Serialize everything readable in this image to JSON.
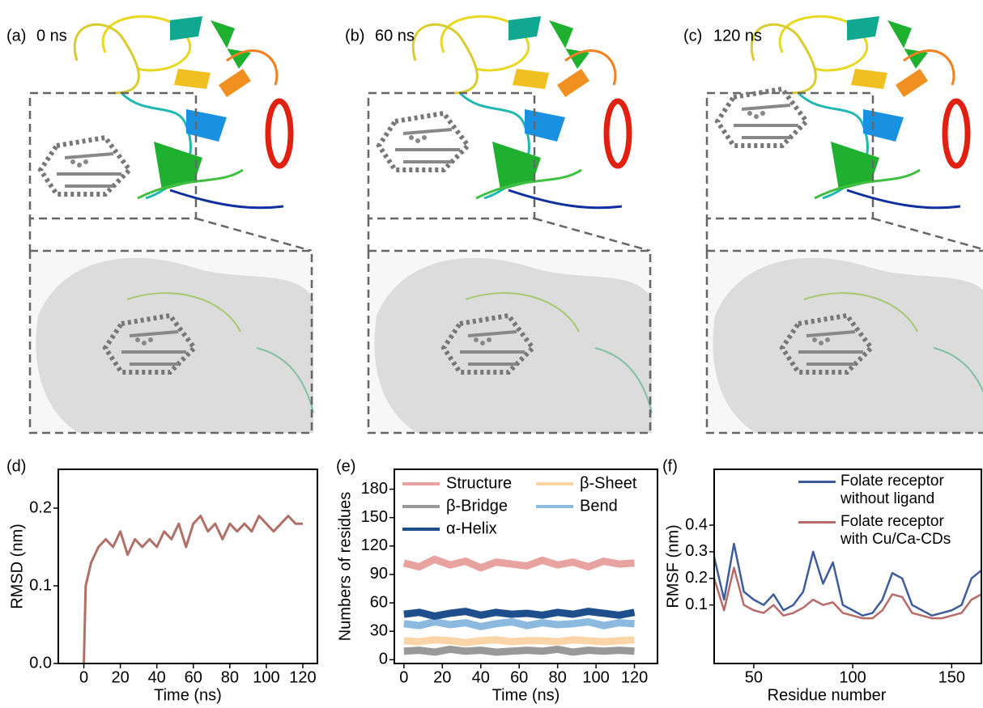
{
  "panels": [
    {
      "label": "(a)",
      "time": "0 ns"
    },
    {
      "label": "(b)",
      "time": "60 ns"
    },
    {
      "label": "(c)",
      "time": "120 ns"
    }
  ],
  "chart_data": [
    {
      "type": "line",
      "panel_label": "(d)",
      "x_label": "Time (ns)",
      "y_label": "RMSD (nm)",
      "x": [
        0,
        1,
        4,
        8,
        12,
        16,
        20,
        24,
        28,
        32,
        36,
        40,
        44,
        48,
        52,
        56,
        60,
        64,
        68,
        72,
        76,
        80,
        84,
        88,
        92,
        96,
        100,
        104,
        108,
        112,
        116,
        120
      ],
      "series": [
        {
          "color": "#b07068",
          "values": [
            0,
            0.1,
            0.13,
            0.15,
            0.16,
            0.15,
            0.17,
            0.14,
            0.16,
            0.15,
            0.16,
            0.15,
            0.17,
            0.16,
            0.18,
            0.15,
            0.18,
            0.19,
            0.17,
            0.18,
            0.16,
            0.18,
            0.17,
            0.18,
            0.17,
            0.19,
            0.18,
            0.17,
            0.18,
            0.19,
            0.18,
            0.18
          ]
        }
      ],
      "xlim": [
        -14,
        128
      ],
      "xticks": [
        0,
        20,
        40,
        60,
        80,
        100,
        120
      ],
      "ylim": [
        0,
        0.25
      ],
      "yticks": [
        {
          "value": 0,
          "label": "0.0"
        },
        0.1,
        0.2
      ]
    },
    {
      "type": "line",
      "panel_label": "(e)",
      "x_label": "Time (ns)",
      "y_label": "Numbers of residues",
      "legend": "top",
      "x": [
        0,
        8,
        16,
        24,
        32,
        40,
        48,
        56,
        64,
        72,
        80,
        88,
        96,
        104,
        112,
        120
      ],
      "series": [
        {
          "name": "Structure",
          "color": "#e8a3a0",
          "values": [
            102,
            98,
            106,
            100,
            104,
            97,
            103,
            101,
            99,
            105,
            100,
            103,
            98,
            104,
            101,
            102
          ]
        },
        {
          "name": "β-Sheet",
          "color": "#fbd5a8",
          "values": [
            20,
            19,
            21,
            20,
            18,
            20,
            21,
            19,
            20,
            20,
            19,
            21,
            20,
            19,
            20,
            21
          ]
        },
        {
          "name": "β-Bridge",
          "color": "#999999",
          "values": [
            9,
            10,
            8,
            11,
            9,
            10,
            8,
            9,
            10,
            9,
            11,
            8,
            10,
            9,
            10,
            9
          ]
        },
        {
          "name": "Bend",
          "color": "#8bb9e0",
          "values": [
            38,
            36,
            40,
            37,
            39,
            35,
            38,
            40,
            36,
            39,
            37,
            38,
            40,
            36,
            39,
            38
          ]
        },
        {
          "name": "α-Helix",
          "color": "#1f4e8c",
          "values": [
            48,
            50,
            46,
            49,
            51,
            47,
            50,
            48,
            49,
            47,
            50,
            48,
            51,
            49,
            47,
            50
          ]
        }
      ],
      "xlim": [
        -5,
        132
      ],
      "xticks": [
        0,
        20,
        40,
        60,
        80,
        100,
        120
      ],
      "ylim": [
        -4,
        201
      ],
      "yticks": [
        0,
        30,
        60,
        90,
        120,
        150,
        180
      ]
    },
    {
      "type": "line",
      "panel_label": "(f)",
      "x_label": "Residue number",
      "y_label": "RMSF (nm)",
      "legend": "top-right",
      "x": [
        30,
        35,
        40,
        45,
        50,
        55,
        60,
        65,
        70,
        75,
        80,
        85,
        90,
        95,
        100,
        105,
        110,
        115,
        120,
        125,
        130,
        135,
        140,
        145,
        150,
        155,
        160,
        165
      ],
      "series": [
        {
          "name": "Folate receptor without ligand",
          "color": "#3e5c9c",
          "values": [
            0.28,
            0.12,
            0.33,
            0.15,
            0.12,
            0.1,
            0.14,
            0.08,
            0.1,
            0.15,
            0.3,
            0.18,
            0.26,
            0.1,
            0.08,
            0.06,
            0.07,
            0.12,
            0.22,
            0.2,
            0.1,
            0.08,
            0.06,
            0.07,
            0.08,
            0.1,
            0.2,
            0.23
          ]
        },
        {
          "name": "Folate receptor with Cu/Ca-CDs",
          "color": "#b86a68",
          "values": [
            0.2,
            0.08,
            0.24,
            0.1,
            0.08,
            0.07,
            0.1,
            0.06,
            0.07,
            0.09,
            0.12,
            0.1,
            0.11,
            0.07,
            0.06,
            0.05,
            0.05,
            0.08,
            0.14,
            0.13,
            0.07,
            0.06,
            0.05,
            0.05,
            0.06,
            0.07,
            0.12,
            0.14
          ]
        }
      ],
      "xlim": [
        30,
        165
      ],
      "xticks": [
        50,
        100,
        150
      ],
      "ylim": [
        -0.12,
        0.61
      ],
      "yticks": [
        0.1,
        0.2,
        0.3,
        0.4
      ]
    }
  ]
}
